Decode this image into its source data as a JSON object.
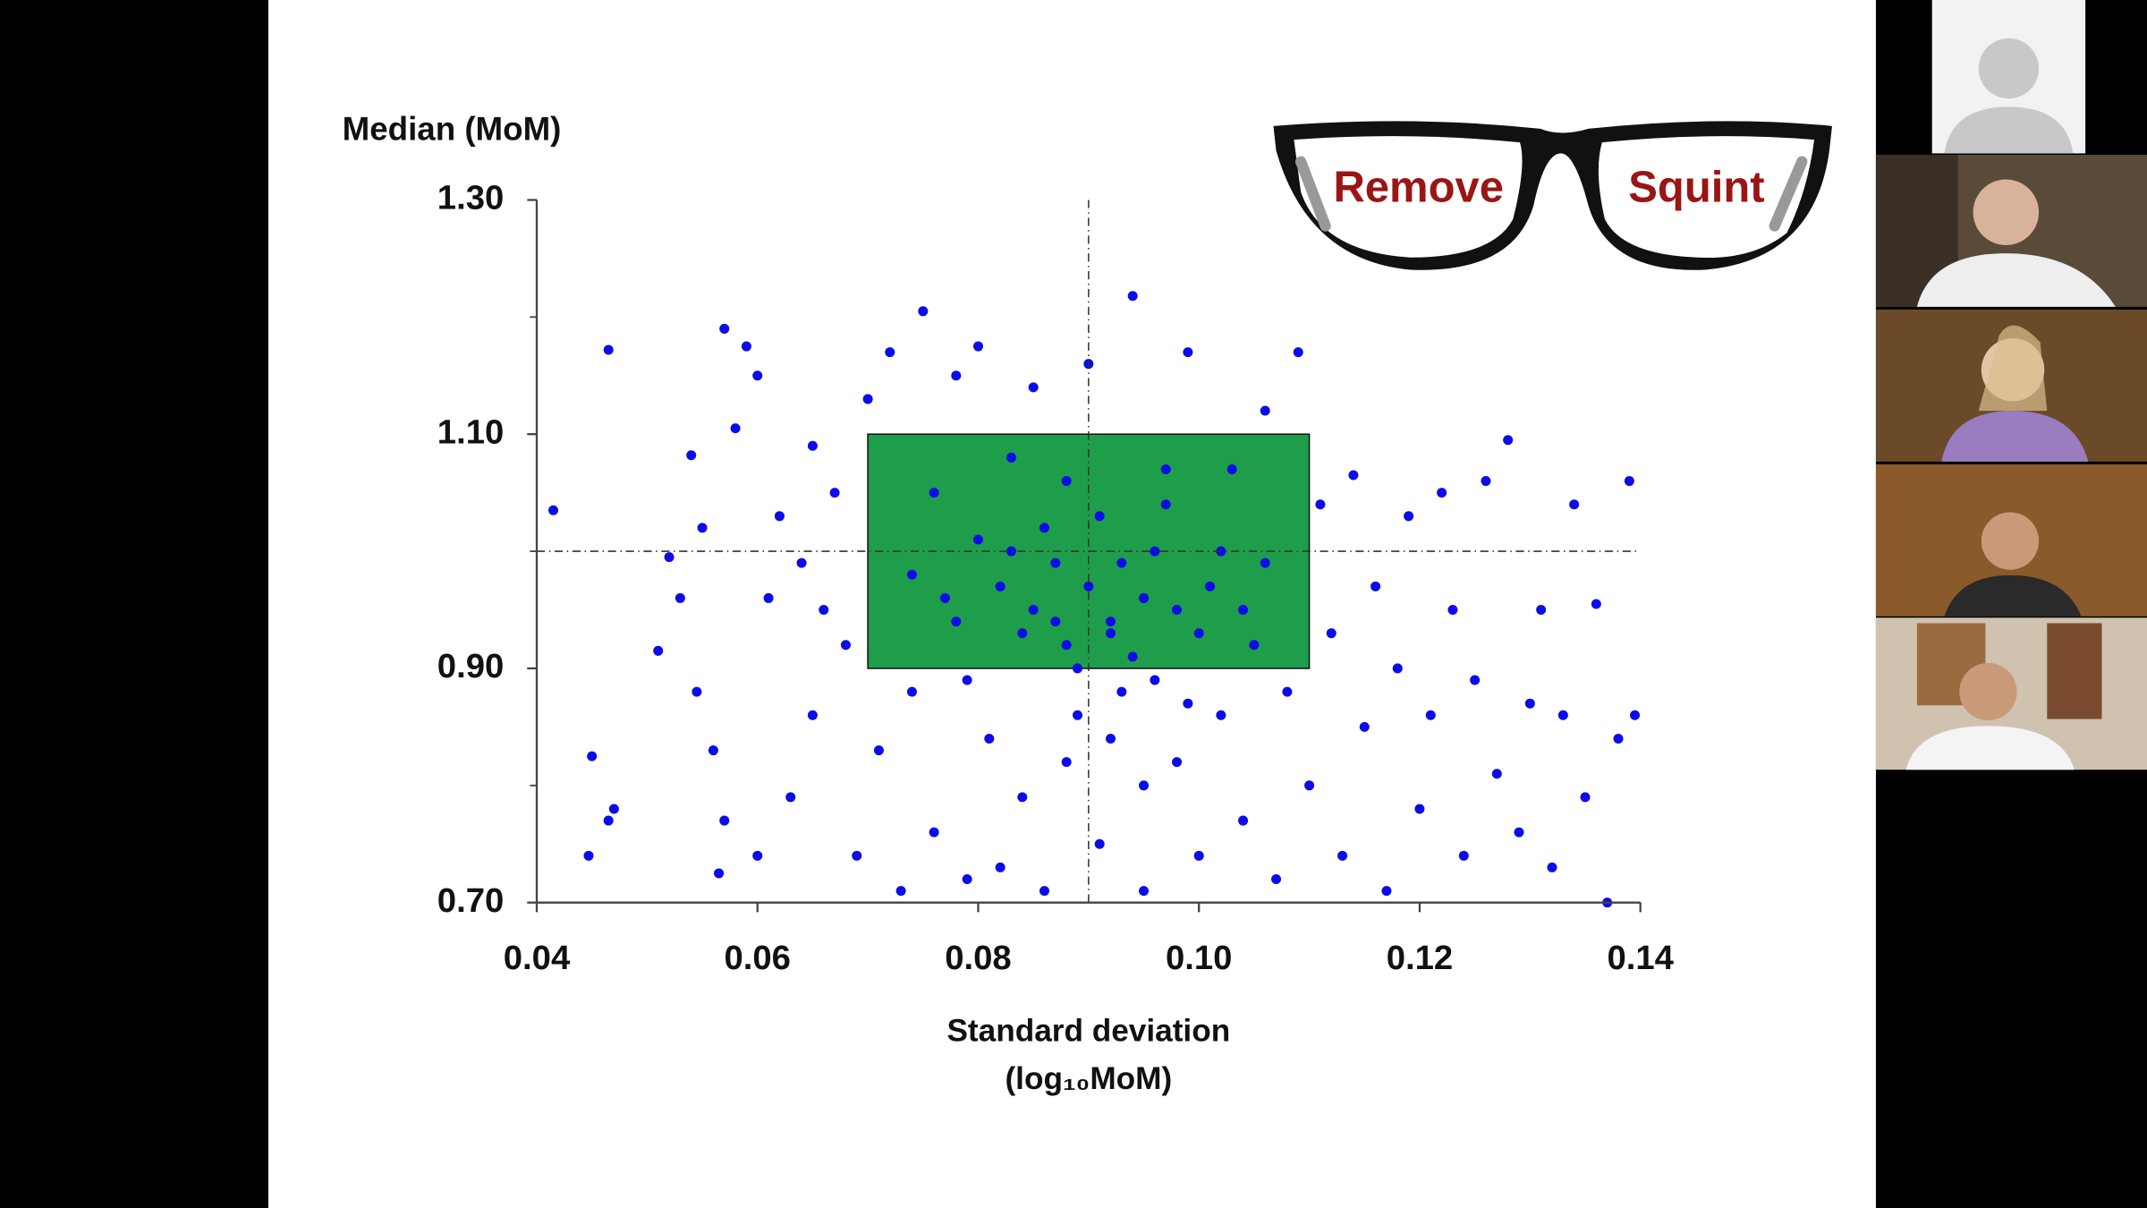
{
  "chart_data": {
    "type": "scatter",
    "ylabel": "Median (MoM)",
    "xlabel": [
      "Standard deviation",
      "(log₁₀MoM)"
    ],
    "annotations": [
      "Remove",
      "Squint"
    ],
    "color": "#0c0ce8",
    "box_color": "#1e9e4a",
    "xlim": [
      0.04,
      0.14
    ],
    "ylim": [
      0.7,
      1.3
    ],
    "xticks": [
      0.04,
      0.06,
      0.08,
      {
        "value": 0.1,
        "label": "0.10"
      },
      0.12,
      0.14
    ],
    "yticks": [
      {
        "value": 0.7,
        "label": "0.70"
      },
      {
        "value": 0.9,
        "label": "0.90"
      },
      {
        "value": 1.1,
        "label": "1.10"
      },
      {
        "value": 1.3,
        "label": "1.30"
      }
    ],
    "yminor": [
      0.8,
      1.0,
      1.2
    ],
    "reference_lines": {
      "x": 0.09,
      "y": 1.0
    },
    "target_box": {
      "x": [
        0.07,
        0.11
      ],
      "y": [
        0.9,
        1.1
      ]
    },
    "x": [
      0.0415,
      0.0465,
      0.045,
      0.0447,
      0.0465,
      0.047,
      0.051,
      0.052,
      0.053,
      0.054,
      0.0545,
      0.055,
      0.056,
      0.0565,
      0.057,
      0.057,
      0.058,
      0.059,
      0.06,
      0.06,
      0.061,
      0.062,
      0.063,
      0.064,
      0.065,
      0.065,
      0.066,
      0.067,
      0.068,
      0.069,
      0.07,
      0.071,
      0.072,
      0.073,
      0.074,
      0.075,
      0.076,
      0.077,
      0.078,
      0.079,
      0.08,
      0.081,
      0.082,
      0.083,
      0.084,
      0.085,
      0.086,
      0.087,
      0.088,
      0.089,
      0.09,
      0.091,
      0.092,
      0.093,
      0.094,
      0.095,
      0.096,
      0.097,
      0.098,
      0.099,
      0.1,
      0.101,
      0.102,
      0.103,
      0.104,
      0.105,
      0.106,
      0.107,
      0.108,
      0.109,
      0.11,
      0.111,
      0.112,
      0.113,
      0.114,
      0.115,
      0.116,
      0.117,
      0.118,
      0.119,
      0.12,
      0.121,
      0.122,
      0.123,
      0.124,
      0.125,
      0.126,
      0.127,
      0.128,
      0.129,
      0.13,
      0.131,
      0.132,
      0.133,
      0.134,
      0.135,
      0.136,
      0.137,
      0.138,
      0.139,
      0.1395,
      0.085,
      0.088,
      0.09,
      0.092,
      0.094,
      0.086,
      0.091,
      0.095,
      0.089,
      0.093,
      0.087,
      0.096,
      0.084,
      0.098,
      0.082,
      0.1,
      0.08,
      0.078,
      0.076,
      0.074,
      0.102,
      0.104,
      0.106,
      0.083,
      0.097,
      0.079,
      0.099,
      0.092,
      0.088,
      0.095
    ],
    "values": [
      1.035,
      1.172,
      0.825,
      0.74,
      0.77,
      0.78,
      0.915,
      0.995,
      0.96,
      1.082,
      0.88,
      1.02,
      0.83,
      0.725,
      0.77,
      1.19,
      1.105,
      1.175,
      1.15,
      0.74,
      0.96,
      1.03,
      0.79,
      0.99,
      1.09,
      0.86,
      0.95,
      1.05,
      0.92,
      0.74,
      1.13,
      0.83,
      1.17,
      0.71,
      0.88,
      1.205,
      0.76,
      0.96,
      1.15,
      0.72,
      1.175,
      0.84,
      0.73,
      1.0,
      0.79,
      1.14,
      0.71,
      0.94,
      1.06,
      0.86,
      1.16,
      0.75,
      0.93,
      0.99,
      1.218,
      0.71,
      0.89,
      1.04,
      0.82,
      1.17,
      0.74,
      0.97,
      0.86,
      1.07,
      0.77,
      0.92,
      1.12,
      0.72,
      0.88,
      1.17,
      0.8,
      1.04,
      0.93,
      0.74,
      1.065,
      0.85,
      0.97,
      0.71,
      0.9,
      1.03,
      0.78,
      0.86,
      1.05,
      0.95,
      0.74,
      0.89,
      1.06,
      0.81,
      1.095,
      0.76,
      0.87,
      0.95,
      0.73,
      0.86,
      1.04,
      0.79,
      0.955,
      0.7,
      0.84,
      1.06,
      0.86,
      0.95,
      0.92,
      0.97,
      0.94,
      0.91,
      1.02,
      1.03,
      0.96,
      0.9,
      0.88,
      0.99,
      1.0,
      0.93,
      0.95,
      0.97,
      0.93,
      1.01,
      0.94,
      1.05,
      0.98,
      1.0,
      0.95,
      0.99,
      1.08,
      1.07,
      0.89,
      0.87,
      0.84,
      0.82,
      0.8
    ]
  }
}
